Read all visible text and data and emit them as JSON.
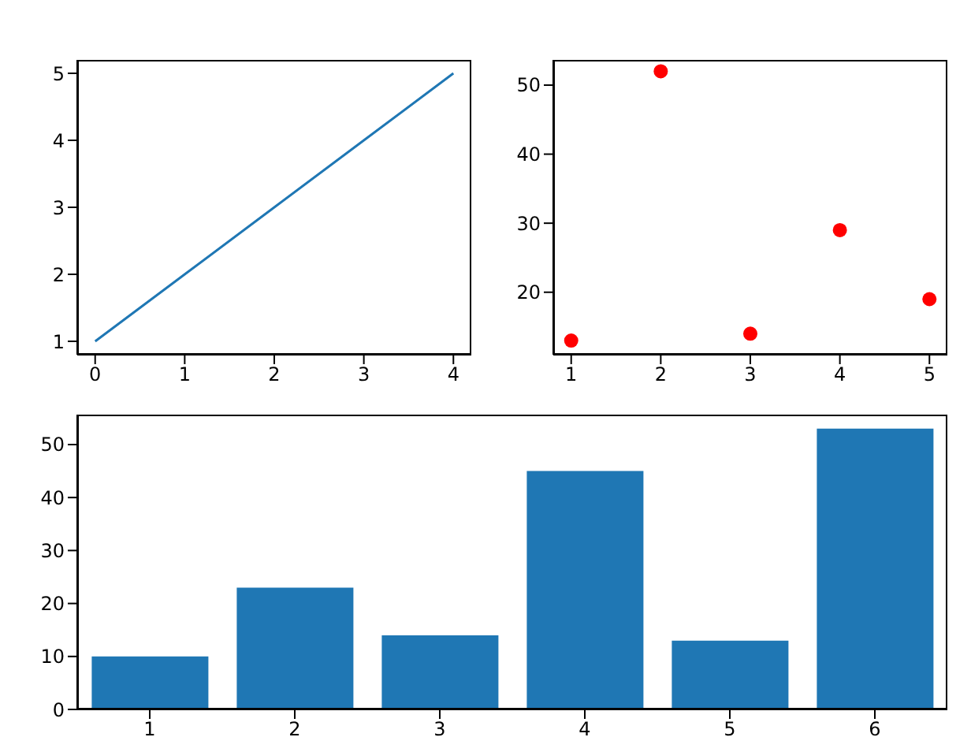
{
  "chart_data": [
    {
      "type": "line",
      "x": [
        0,
        1,
        2,
        3,
        4
      ],
      "values": [
        1,
        2,
        3,
        4,
        5
      ],
      "color": "#1f77b4",
      "xlim": [
        -0.2,
        4.2
      ],
      "ylim": [
        0.8,
        5.2
      ],
      "xticks": [
        0,
        1,
        2,
        3,
        4
      ],
      "yticks": [
        1,
        2,
        3,
        4,
        5
      ]
    },
    {
      "type": "scatter",
      "x": [
        1,
        2,
        3,
        4,
        5
      ],
      "values": [
        13,
        52,
        14,
        29,
        19
      ],
      "color": "#ff0000",
      "marker": "circle",
      "xlim": [
        0.8,
        5.2
      ],
      "ylim": [
        10.95,
        53.65
      ],
      "xticks": [
        1,
        2,
        3,
        4,
        5
      ],
      "yticks": [
        20,
        30,
        40,
        50
      ]
    },
    {
      "type": "bar",
      "categories": [
        "1",
        "2",
        "3",
        "4",
        "5",
        "6"
      ],
      "values": [
        10,
        23,
        14,
        45,
        13,
        53
      ],
      "color": "#1f77b4",
      "ylim": [
        0,
        55.65
      ],
      "yticks": [
        0,
        10,
        20,
        30,
        40,
        50
      ]
    }
  ]
}
